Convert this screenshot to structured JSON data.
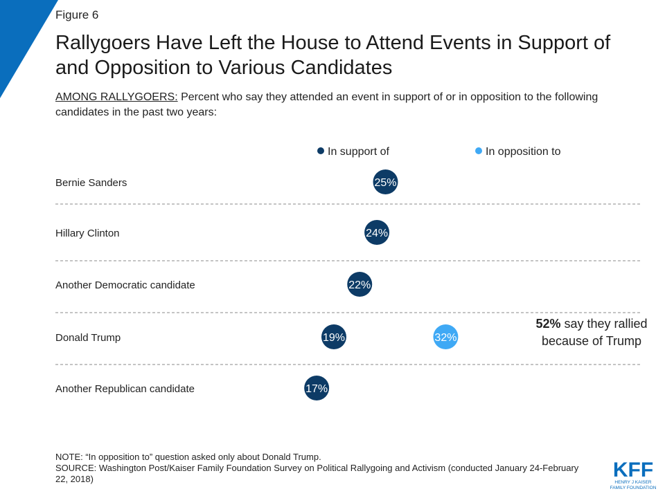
{
  "figure_label": "Figure 6",
  "title": "Rallygoers Have Left the House to Attend Events in Support of and Opposition to Various Candidates",
  "subtitle_lead": "AMONG RALLYGOERS:",
  "subtitle_rest": " Percent who say they attended an event in support of or in opposition to the following candidates in the past two years:",
  "annotation": {
    "bold": "52%",
    "text": " say they rallied because of Trump"
  },
  "notes": [
    "NOTE: “In opposition to” question asked only about Donald Trump.",
    "SOURCE: Washington Post/Kaiser Family Foundation Survey on Political Rallygoing and Activism (conducted January 24-February 22, 2018)"
  ],
  "logo": {
    "text": "KFF",
    "sub1": "HENRY J KAISER",
    "sub2": "FAMILY FOUNDATION"
  },
  "colors": {
    "support": "#0d3b66",
    "opposition": "#3fa9f5",
    "corner": "#0a6ebd",
    "logo": "#0a6ebd",
    "divider": "#888888"
  },
  "chart_data": {
    "type": "scatter",
    "categories": [
      "Bernie Sanders",
      "Hillary Clinton",
      "Another Democratic candidate",
      "Donald Trump",
      "Another Republican candidate"
    ],
    "series": [
      {
        "name": "In support of",
        "values": [
          25,
          24,
          22,
          19,
          17
        ],
        "labels": [
          "25%",
          "24%",
          "22%",
          "19%",
          "17%"
        ],
        "color": "#0d3b66"
      },
      {
        "name": "In opposition to",
        "values": [
          null,
          null,
          null,
          32,
          null
        ],
        "labels": [
          null,
          null,
          null,
          "32%",
          null
        ],
        "color": "#3fa9f5"
      }
    ],
    "xlim": [
      0,
      40
    ],
    "legend_position": "top",
    "grid": false
  }
}
